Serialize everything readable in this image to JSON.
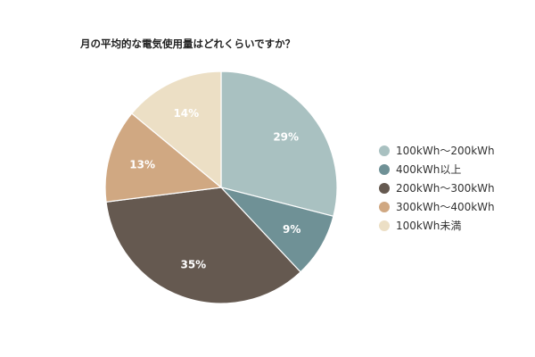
{
  "chart_data": {
    "type": "pie",
    "title": "月の平均的な電気使用量はどれくらいですか？",
    "slices": [
      {
        "label": "100kWh〜200kWh",
        "value": 29,
        "value_label": "29%",
        "color": "#a9c1c1"
      },
      {
        "label": "400kWh以上",
        "value": 9,
        "value_label": "9%",
        "color": "#6f9196"
      },
      {
        "label": "200kWh〜300kWh",
        "value": 35,
        "value_label": "35%",
        "color": "#655950"
      },
      {
        "label": "300kWh〜400kWh",
        "value": 13,
        "value_label": "13%",
        "color": "#d0a882"
      },
      {
        "label": "100kWh未満",
        "value": 14,
        "value_label": "14%",
        "color": "#ecdfc5"
      }
    ],
    "legend_position": "right"
  }
}
